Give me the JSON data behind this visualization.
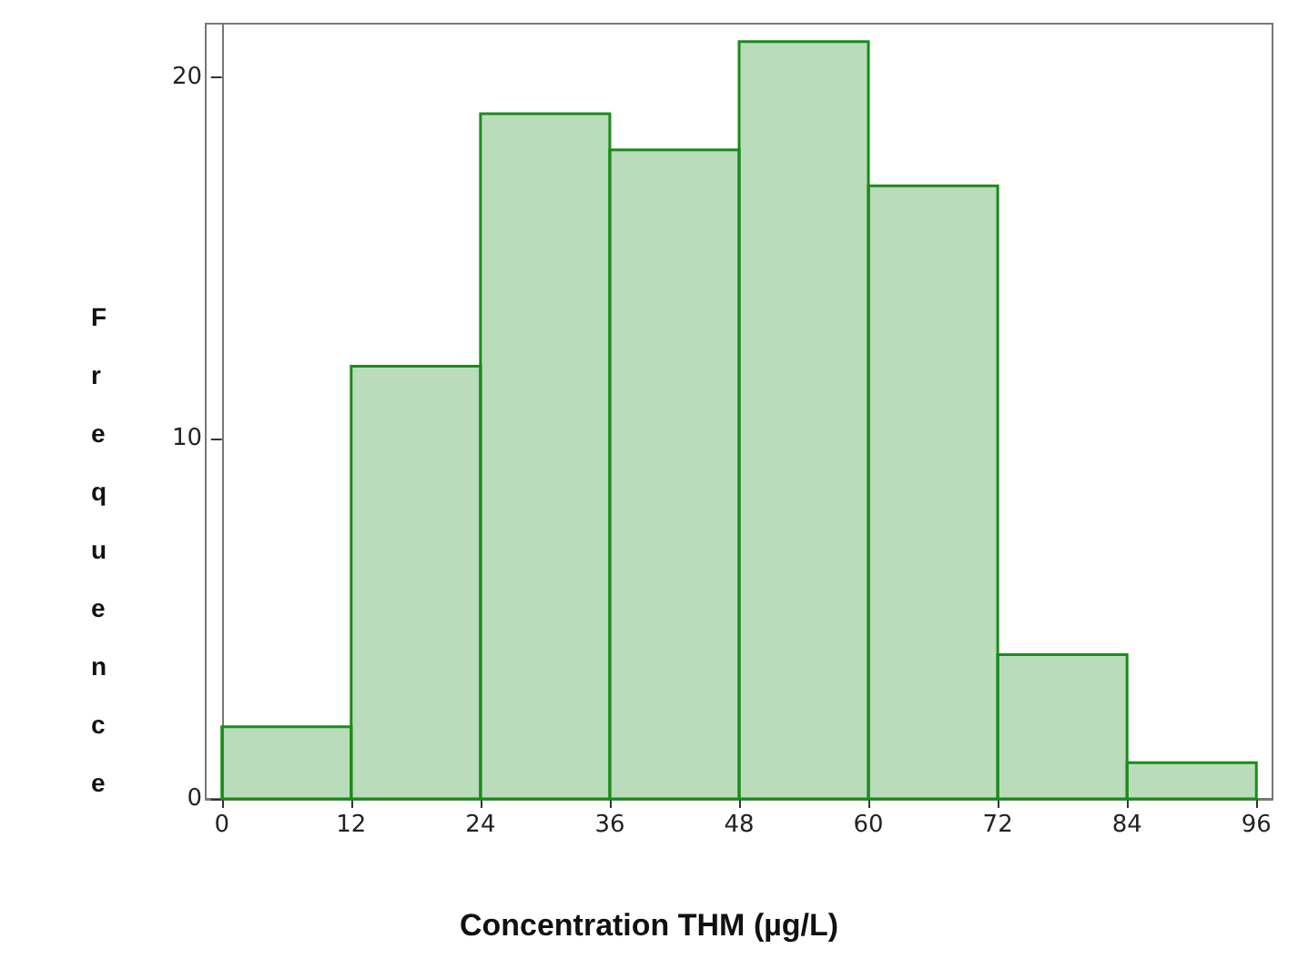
{
  "chart_data": {
    "type": "histogram",
    "xlabel": "Concentration THM (µg/L)",
    "ylabel": "Frequence",
    "bins": [
      0,
      12,
      24,
      36,
      48,
      60,
      72,
      84,
      96
    ],
    "values": [
      2,
      12,
      19,
      18,
      21,
      17,
      4,
      1
    ],
    "color": "#1a8c1a",
    "xlim": [
      -1.5,
      97.5
    ],
    "xticks": [
      0,
      12,
      24,
      36,
      48,
      60,
      72,
      84,
      96
    ],
    "ylim": [
      0,
      21.5
    ],
    "yticks": [
      0,
      10,
      20
    ]
  }
}
